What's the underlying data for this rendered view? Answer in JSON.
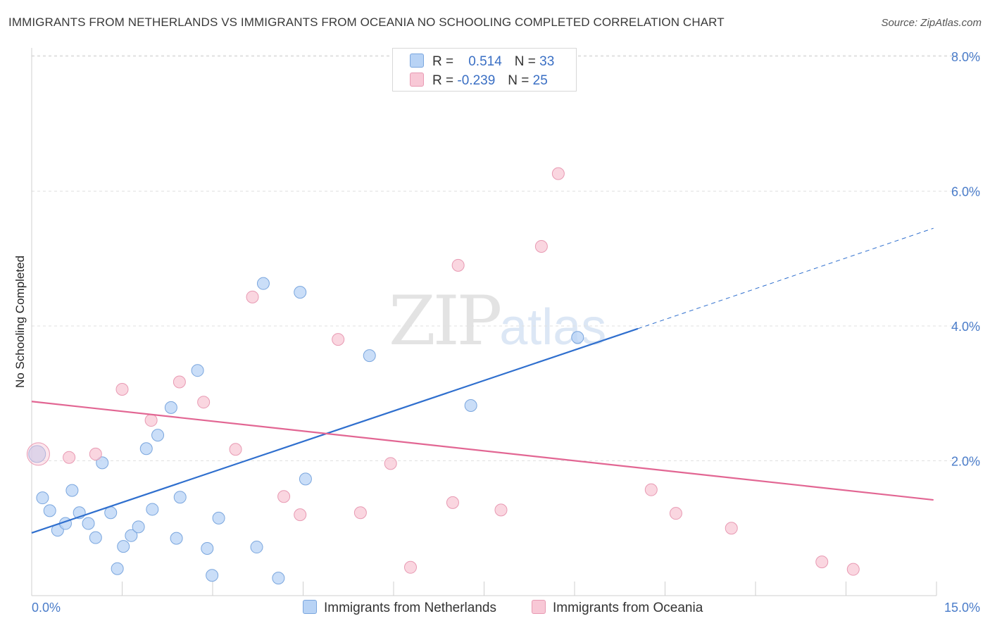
{
  "header": {
    "title": "IMMIGRANTS FROM NETHERLANDS VS IMMIGRANTS FROM OCEANIA NO SCHOOLING COMPLETED CORRELATION CHART",
    "source": "Source: ZipAtlas.com"
  },
  "watermark": {
    "zip": "ZIP",
    "atlas": "atlas"
  },
  "legend": {
    "r_label": "R =",
    "n_label": "N =",
    "rows": [
      {
        "r": "0.514",
        "n": "33"
      },
      {
        "r": "-0.239",
        "n": "25"
      }
    ]
  },
  "colors": {
    "blue_fill": "#b8d3f5",
    "blue_stroke": "#7aa6de",
    "blue_line": "#2f6fce",
    "pink_fill": "#f8c8d6",
    "pink_stroke": "#e89ab3",
    "pink_line": "#e26693",
    "grid": "#e0e0e0",
    "tick": "#4a7cc9"
  },
  "chart_data": {
    "type": "scatter",
    "title": "IMMIGRANTS FROM NETHERLANDS VS IMMIGRANTS FROM OCEANIA NO SCHOOLING COMPLETED CORRELATION CHART",
    "xlabel": "",
    "ylabel": "No Schooling Completed",
    "xlim": [
      0,
      15
    ],
    "ylim": [
      0,
      8
    ],
    "x_tick_labels": [
      "0.0%",
      "15.0%"
    ],
    "y_ticks": [
      2,
      4,
      6,
      8
    ],
    "y_tick_labels": [
      "2.0%",
      "4.0%",
      "6.0%",
      "8.0%"
    ],
    "grid": true,
    "series": [
      {
        "name": "Immigrants from Netherlands",
        "color": "blue",
        "points": [
          [
            0.09,
            2.1
          ],
          [
            0.18,
            1.45
          ],
          [
            0.3,
            1.26
          ],
          [
            0.43,
            0.97
          ],
          [
            0.56,
            1.07
          ],
          [
            0.67,
            1.56
          ],
          [
            0.79,
            1.23
          ],
          [
            0.94,
            1.07
          ],
          [
            1.06,
            0.86
          ],
          [
            1.17,
            1.97
          ],
          [
            1.31,
            1.23
          ],
          [
            1.42,
            0.4
          ],
          [
            1.52,
            0.73
          ],
          [
            1.65,
            0.89
          ],
          [
            1.77,
            1.02
          ],
          [
            1.9,
            2.18
          ],
          [
            2.0,
            1.28
          ],
          [
            2.09,
            2.38
          ],
          [
            2.31,
            2.79
          ],
          [
            2.4,
            0.85
          ],
          [
            2.46,
            1.46
          ],
          [
            2.75,
            3.34
          ],
          [
            2.91,
            0.7
          ],
          [
            2.99,
            0.3
          ],
          [
            3.1,
            1.15
          ],
          [
            3.73,
            0.72
          ],
          [
            3.84,
            4.63
          ],
          [
            4.09,
            0.26
          ],
          [
            4.45,
            4.5
          ],
          [
            4.54,
            1.73
          ],
          [
            5.6,
            3.56
          ],
          [
            7.28,
            2.82
          ],
          [
            9.05,
            3.83
          ]
        ]
      },
      {
        "name": "Immigrants from Oceania",
        "color": "pink",
        "points": [
          [
            0.11,
            2.1
          ],
          [
            0.62,
            2.05
          ],
          [
            1.06,
            2.1
          ],
          [
            1.5,
            3.06
          ],
          [
            1.98,
            2.6
          ],
          [
            2.45,
            3.17
          ],
          [
            2.85,
            2.87
          ],
          [
            3.38,
            2.17
          ],
          [
            3.66,
            4.43
          ],
          [
            4.18,
            1.47
          ],
          [
            4.45,
            1.2
          ],
          [
            5.08,
            3.8
          ],
          [
            5.45,
            1.23
          ],
          [
            5.95,
            1.96
          ],
          [
            6.28,
            0.42
          ],
          [
            6.98,
            1.38
          ],
          [
            7.07,
            4.9
          ],
          [
            7.78,
            1.27
          ],
          [
            8.45,
            5.18
          ],
          [
            8.73,
            6.26
          ],
          [
            10.27,
            1.57
          ],
          [
            10.68,
            1.22
          ],
          [
            11.6,
            1.0
          ],
          [
            13.1,
            0.5
          ],
          [
            13.62,
            0.39
          ]
        ]
      }
    ],
    "trend_lines": [
      {
        "series": "Immigrants from Netherlands",
        "x": [
          0,
          10.05
        ],
        "y": [
          0.93,
          3.96
        ],
        "dashed_extension": {
          "x": [
            10.05,
            14.95
          ],
          "y": [
            3.96,
            5.45
          ]
        }
      },
      {
        "series": "Immigrants from Oceania",
        "x": [
          0,
          14.95
        ],
        "y": [
          2.88,
          1.42
        ]
      }
    ],
    "legend_bottom": [
      "Immigrants from Netherlands",
      "Immigrants from Oceania"
    ]
  }
}
